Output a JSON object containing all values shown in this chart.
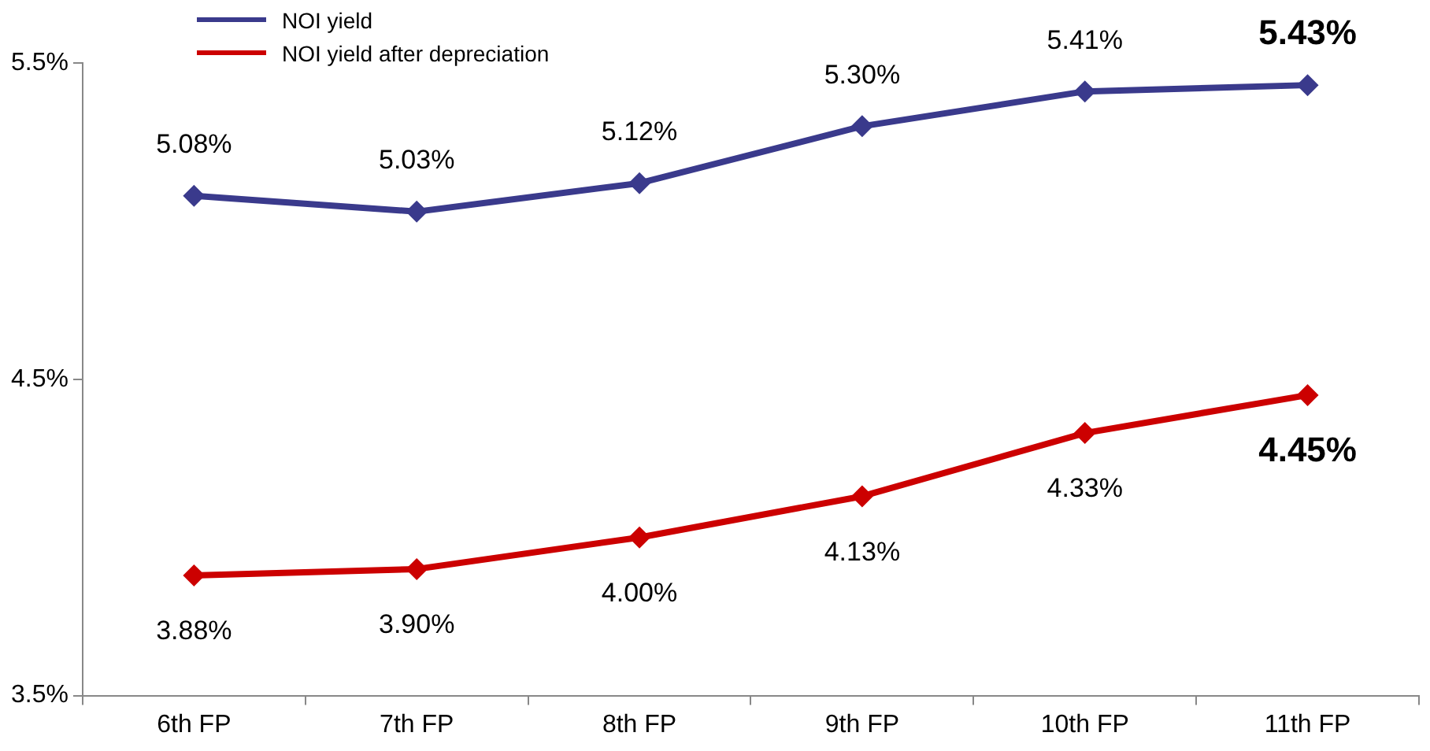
{
  "chart_data": {
    "type": "line",
    "categories": [
      "6th FP",
      "7th FP",
      "8th FP",
      "9th FP",
      "10th FP",
      "11th FP"
    ],
    "series": [
      {
        "name": "NOI yield",
        "color": "#3a3a8c",
        "values": [
          5.08,
          5.03,
          5.12,
          5.3,
          5.41,
          5.43
        ],
        "value_labels": [
          "5.08%",
          "5.03%",
          "5.12%",
          "5.30%",
          "5.41%",
          "5.43%"
        ]
      },
      {
        "name": "NOI yield after depreciation",
        "color": "#cc0000",
        "values": [
          3.88,
          3.9,
          4.0,
          4.13,
          4.33,
          4.45
        ],
        "value_labels": [
          "3.88%",
          "3.90%",
          "4.00%",
          "4.13%",
          "4.33%",
          "4.45%"
        ]
      }
    ],
    "ylim": [
      3.5,
      5.5
    ],
    "yticks": [
      {
        "value": 3.5,
        "label": "3.5%"
      },
      {
        "value": 4.5,
        "label": "4.5%"
      },
      {
        "value": 5.5,
        "label": "5.5%"
      }
    ],
    "grid": false,
    "legend": "top left",
    "marker": "diamond",
    "line_style": "solid"
  }
}
